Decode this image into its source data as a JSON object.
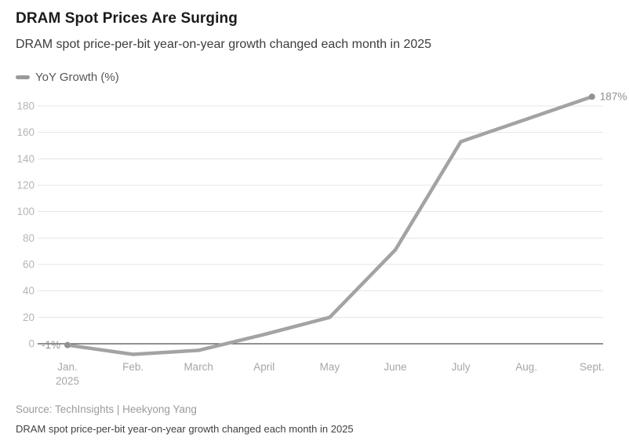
{
  "header": {
    "title": "DRAM Spot Prices Are Surging",
    "subtitle": "DRAM spot price-per-bit year-on-year growth changed each month in 2025"
  },
  "legend": {
    "label": "YoY Growth (%)",
    "swatch_color": "#9a9a9a"
  },
  "chart_data": {
    "type": "line",
    "title": "DRAM Spot Prices Are Surging",
    "subtitle": "DRAM spot price-per-bit year-on-year growth changed each month in 2025",
    "categories": [
      "Jan.",
      "Feb.",
      "March",
      "April",
      "May",
      "June",
      "July",
      "Aug.",
      "Sept."
    ],
    "x_sublabels": {
      "0": "2025"
    },
    "series": [
      {
        "name": "YoY Growth (%)",
        "values": [
          -1,
          -8,
          -5,
          7,
          20,
          71,
          153,
          170,
          187
        ],
        "color": "#a3a3a3"
      }
    ],
    "yticks": [
      0,
      20,
      40,
      60,
      80,
      100,
      120,
      140,
      160,
      180
    ],
    "ylim": [
      -14,
      192
    ],
    "grid": true,
    "legend_position": "top-left",
    "annotations": [
      {
        "index": 0,
        "text": "-1%",
        "side": "left"
      },
      {
        "index": 8,
        "text": "187%",
        "side": "right"
      }
    ],
    "colors": {
      "line": "#a3a3a3",
      "grid": "#e4e4e4",
      "zero_line": "#4f4f4f",
      "y_tick": "#b5b5b5",
      "x_tick": "#a6a6a6",
      "annotation": "#8f8f8f",
      "dot": "#919191"
    }
  },
  "footer": {
    "source": "Source: TechInsights | Heekyong Yang",
    "caption": "DRAM spot price-per-bit year-on-year growth changed each month in 2025"
  }
}
